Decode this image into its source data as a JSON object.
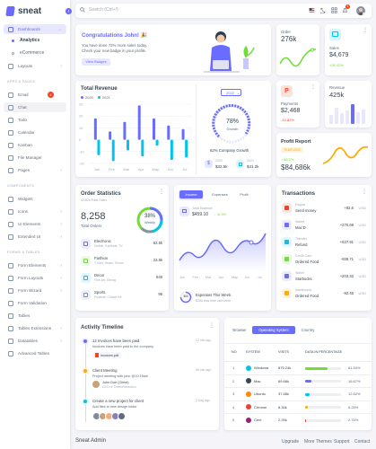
{
  "brand": {
    "name": "sneat"
  },
  "search": {
    "placeholder": "Search (Ctrl+/)"
  },
  "navbar": {
    "notif_count": "4"
  },
  "sidebar": {
    "dashboards": "Dashboards",
    "analytics": "Analytics",
    "ecommerce": "eCommerce",
    "layouts": "Layouts",
    "apps_header": "APPS & PAGES",
    "email": "Email",
    "email_badge": "4",
    "chat": "Chat",
    "todo": "Todo",
    "calendar": "Calendar",
    "kanban": "Kanban",
    "file_manager": "File Manager",
    "pages": "Pages",
    "components_header": "COMPONENTS",
    "widgets": "Widgets",
    "icons": "Icons",
    "ui_elements": "UI Elements",
    "extended_ui": "Extended UI",
    "forms_header": "FORMS & TABLES",
    "form_elements": "Form Elements",
    "form_layouts": "Form Layouts",
    "form_wizard": "Form Wizard",
    "form_validation": "Form Validation",
    "tables": "Tables",
    "table_ext": "Tables Extensions",
    "datatables": "Datatables",
    "adv_tables": "Advanced Tables"
  },
  "congrats": {
    "title": "Congratulations John! 🎉",
    "line1": "You have done 72% more sales today.",
    "line2": "Check your new badge in your profile.",
    "button": "View Badges"
  },
  "order": {
    "label": "Order",
    "value": "276k"
  },
  "sales": {
    "label": "Sales",
    "value": "$4,679",
    "change": "+28.42%"
  },
  "total_revenue": {
    "title": "Total Revenue",
    "legend_a": "2020",
    "legend_b": "2021",
    "year": "2022",
    "growth_pct": "78%",
    "growth_label": "Growth",
    "company_growth": "62% Company Growth",
    "stat1_year": "2022",
    "stat1_value": "$32.5k",
    "stat2_year": "2021",
    "stat2_value": "$41.2k",
    "ylabels": [
      "30",
      "20",
      "10",
      "0",
      "-10",
      "-20"
    ]
  },
  "chart_data": {
    "type": "bar",
    "categories": [
      "Jan",
      "Feb",
      "Mar",
      "Apr",
      "May",
      "Jun",
      "Jul"
    ],
    "series": [
      {
        "name": "2020",
        "values": [
          18,
          7,
          15,
          29,
          18,
          12,
          9
        ]
      },
      {
        "name": "2021",
        "values": [
          -13,
          -18,
          -9,
          -14,
          -5,
          -17,
          -15
        ]
      }
    ],
    "ylim": [
      -20,
      30
    ],
    "title": "Total Revenue"
  },
  "payments": {
    "label": "Payments",
    "value": "$2,468",
    "change": "-14.82%"
  },
  "revenue": {
    "label": "Revenue",
    "value": "425k"
  },
  "profit": {
    "title": "Profit Report",
    "badge": "YEAR 2022",
    "change": "↑ 68.2%",
    "value": "$84,686k"
  },
  "order_stats": {
    "title": "Order Statistics",
    "subtitle": "42.82k Total Sales",
    "total": "8,258",
    "total_label": "Total Orders",
    "ring_pct": "38%",
    "ring_label": "Weekly",
    "items": [
      {
        "name": "Electronic",
        "desc": "Mobile, Earbuds, TV",
        "value": "82.5k",
        "color": "#696cff"
      },
      {
        "name": "Fashion",
        "desc": "T-shirt, Jeans, Shoes",
        "value": "23.8k",
        "color": "#71dd37"
      },
      {
        "name": "Decor",
        "desc": "Fine Art, Dining",
        "value": "849",
        "color": "#03c3ec"
      },
      {
        "name": "Sports",
        "desc": "Football, Cricket Kit",
        "value": "99",
        "color": "#8592a3"
      }
    ]
  },
  "income": {
    "tabs": [
      "Income",
      "Expenses",
      "Profit"
    ],
    "balance_label": "Total Balance",
    "balance": "$459.10",
    "balance_change": "↑ 42.9%",
    "months": [
      "Jan",
      "Feb",
      "Mar",
      "Apr",
      "May",
      "Jun",
      "Jul"
    ],
    "week_label": "Expenses This Week",
    "week_desc": "$39k less than last week",
    "week_value": "$65"
  },
  "transactions": {
    "title": "Transactions",
    "rows": [
      {
        "source": "Paypal",
        "desc": "Send money",
        "amount": "+82.6",
        "cur": "USD",
        "color": "#ff3e1d"
      },
      {
        "source": "Wallet",
        "desc": "Mac'D",
        "amount": "+270.69",
        "cur": "USD",
        "color": "#696cff"
      },
      {
        "source": "Transfer",
        "desc": "Refund",
        "amount": "+637.91",
        "cur": "USD",
        "color": "#03c3ec"
      },
      {
        "source": "Credit Card",
        "desc": "Ordered Food",
        "amount": "-838.71",
        "cur": "USD",
        "color": "#71dd37"
      },
      {
        "source": "Wallet",
        "desc": "Starbucks",
        "amount": "+203.33",
        "cur": "USD",
        "color": "#696cff"
      },
      {
        "source": "Mastercard",
        "desc": "Ordered Food",
        "amount": "-92.45",
        "cur": "USD",
        "color": "#ffab00"
      }
    ]
  },
  "activity": {
    "title": "Activity Timeline",
    "items": [
      {
        "title": "12 Invoices have been paid",
        "desc": "Invoices have been paid to the company",
        "time": "12 min ago",
        "file": "invoices.pdf",
        "color": "#696cff"
      },
      {
        "title": "Client Meeting",
        "desc": "Project meeting with john @10:15am",
        "time": "45 min ago",
        "person": "John Doe (Client)",
        "role": "CEO of ThemeSelection",
        "color": "#ffab00"
      },
      {
        "title": "Create a new project for client",
        "desc": "Add files to new design folder",
        "time": "2 Day Ago",
        "color": "#03c3ec"
      }
    ]
  },
  "browser_table": {
    "tabs": [
      "Browser",
      "Operating System",
      "Country"
    ],
    "headers": [
      "NO",
      "SYSTEM",
      "VISITS",
      "DATA IN PERCENTAGE"
    ],
    "rows": [
      {
        "no": "1",
        "name": "Windows",
        "visits": "875.24k",
        "pct": "61.50%",
        "fill": 0.615,
        "color": "#71dd37",
        "icon": "#03c3ec"
      },
      {
        "no": "2",
        "name": "Mac",
        "visits": "89.68k",
        "pct": "16.67%",
        "fill": 0.1667,
        "color": "#696cff",
        "icon": "#384551"
      },
      {
        "no": "3",
        "name": "Ubuntu",
        "visits": "37.68k",
        "pct": "12.82%",
        "fill": 0.1282,
        "color": "#03c3ec",
        "icon": "#ff8a00"
      },
      {
        "no": "4",
        "name": "Chrome",
        "visits": "8.34k",
        "pct": "6.25%",
        "fill": 0.0625,
        "color": "#ffab00",
        "icon": "#ea4335"
      },
      {
        "no": "5",
        "name": "Cent",
        "visits": "2.25k",
        "pct": "2.76%",
        "fill": 0.0276,
        "color": "#ff3e1d",
        "icon": "#932279"
      }
    ]
  },
  "footer": {
    "brand": "Sneat Admin",
    "links": [
      "Upgrade",
      "More Themes",
      "Support",
      "Contact"
    ]
  }
}
